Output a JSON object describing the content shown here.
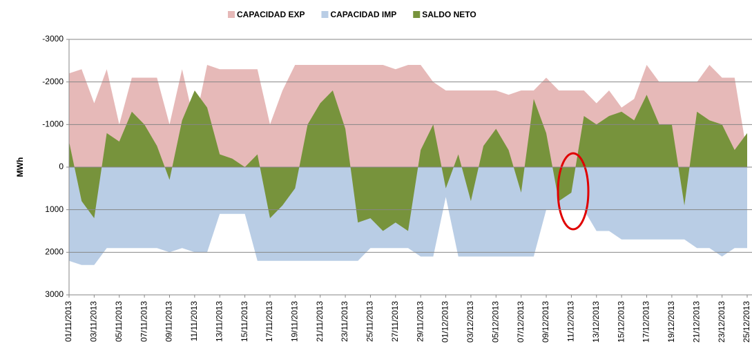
{
  "chart_data": {
    "type": "area",
    "legend_position": "top",
    "y_label": "MWh",
    "y_inverted": true,
    "ylim": [
      -3000,
      3000
    ],
    "yticks": [
      -3000,
      -2000,
      -1000,
      0,
      1000,
      2000,
      3000
    ],
    "grid": true,
    "categories": [
      "01/11/2013",
      null,
      "03/11/2013",
      null,
      "05/11/2013",
      null,
      "07/11/2013",
      null,
      "09/11/2013",
      null,
      "11/11/2013",
      null,
      "13/11/2013",
      null,
      "15/11/2013",
      null,
      "17/11/2013",
      null,
      "19/11/2013",
      null,
      "21/11/2013",
      null,
      "23/11/2013",
      null,
      "25/11/2013",
      null,
      "27/11/2013",
      null,
      "29/11/2013",
      null,
      "01/12/2013",
      null,
      "03/12/2013",
      null,
      "05/12/2013",
      null,
      "07/12/2013",
      null,
      "09/12/2013",
      null,
      "11/12/2013",
      null,
      "13/12/2013",
      null,
      "15/12/2013",
      null,
      "17/12/2013",
      null,
      "19/12/2013",
      null,
      "21/12/2013",
      null,
      "23/12/2013",
      null,
      "25/12/2013"
    ],
    "series": [
      {
        "name": "CAPACIDAD EXP",
        "color": "#e6b9b8",
        "values": [
          -2200,
          -2300,
          -1500,
          -2300,
          -1000,
          -2100,
          -2100,
          -2100,
          -1000,
          -2300,
          -1000,
          -2400,
          -2300,
          -2300,
          -2300,
          -2300,
          -1000,
          -1800,
          -2400,
          -2400,
          -2400,
          -2400,
          -2400,
          -2400,
          -2400,
          -2400,
          -2300,
          -2400,
          -2400,
          -2000,
          -1800,
          -1800,
          -1800,
          -1800,
          -1800,
          -1700,
          -1800,
          -1800,
          -2100,
          -1800,
          -1800,
          -1800,
          -1500,
          -1800,
          -1400,
          -1600,
          -2400,
          -2000,
          -2000,
          -2000,
          -2000,
          -2400,
          -2100,
          -2100,
          -300
        ]
      },
      {
        "name": "CAPACIDAD IMP",
        "color": "#b9cde5",
        "values": [
          2200,
          2300,
          2300,
          1900,
          1900,
          1900,
          1900,
          1900,
          2000,
          1900,
          2000,
          2000,
          1100,
          1100,
          1100,
          2200,
          2200,
          2200,
          2200,
          2200,
          2200,
          2200,
          2200,
          2200,
          1900,
          1900,
          1900,
          1900,
          2100,
          2100,
          700,
          2100,
          2100,
          2100,
          2100,
          2100,
          2100,
          2100,
          1000,
          1000,
          1000,
          1000,
          1500,
          1500,
          1700,
          1700,
          1700,
          1700,
          1700,
          1700,
          1900,
          1900,
          2100,
          1900,
          1900
        ]
      },
      {
        "name": "SALDO NETO",
        "color": "#77933c",
        "values": [
          -600,
          800,
          1200,
          -800,
          -600,
          -1300,
          -1000,
          -500,
          300,
          -1100,
          -1800,
          -1400,
          -300,
          -200,
          0,
          -300,
          1200,
          900,
          500,
          -1000,
          -1500,
          -1800,
          -900,
          1300,
          1200,
          1500,
          1300,
          1500,
          -400,
          -1000,
          500,
          -300,
          800,
          -500,
          -900,
          -400,
          600,
          -1600,
          -800,
          800,
          600,
          -1200,
          -1000,
          -1200,
          -1300,
          -1100,
          -1700,
          -1000,
          -1000,
          900,
          -1300,
          -1100,
          -1000,
          -400,
          -800
        ]
      }
    ]
  }
}
